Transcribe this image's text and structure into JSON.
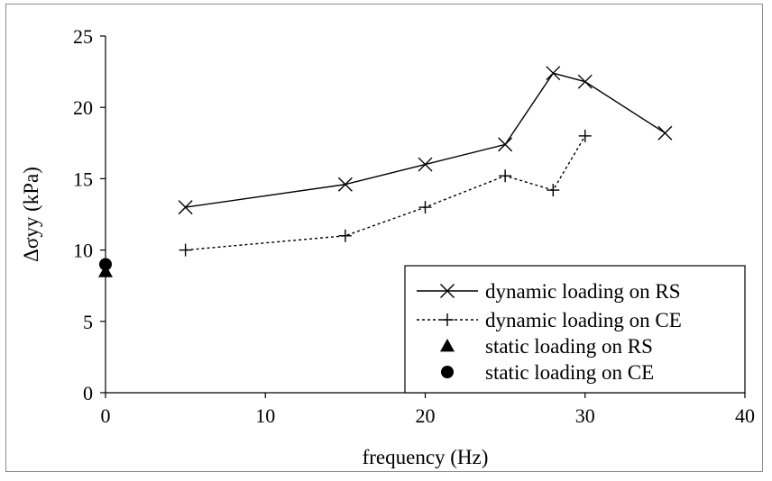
{
  "chart_data": {
    "type": "line",
    "title": "",
    "xlabel": "frequency (Hz)",
    "ylabel": "Δσyy (kPa)",
    "xlim": [
      0,
      40
    ],
    "ylim": [
      0,
      25
    ],
    "xticks": [
      0,
      10,
      20,
      30,
      40
    ],
    "yticks": [
      0,
      5,
      10,
      15,
      20,
      25
    ],
    "grid": false,
    "legend_position": "bottom-right",
    "series": [
      {
        "name": "dynamic loading on RS",
        "style": "solid",
        "marker": "x",
        "color": "#000000",
        "points": [
          [
            5,
            13.0
          ],
          [
            15,
            14.6
          ],
          [
            20,
            16.0
          ],
          [
            25,
            17.4
          ],
          [
            28,
            22.4
          ],
          [
            30,
            21.8
          ],
          [
            35,
            18.2
          ]
        ]
      },
      {
        "name": "dynamic loading on CE",
        "style": "dotted",
        "marker": "plus",
        "color": "#000000",
        "points": [
          [
            5,
            10.0
          ],
          [
            15,
            11.0
          ],
          [
            20,
            13.0
          ],
          [
            25,
            15.2
          ],
          [
            28,
            14.2
          ],
          [
            30,
            18.0
          ]
        ]
      },
      {
        "name": "static loading on RS",
        "style": "none",
        "marker": "triangle",
        "color": "#000000",
        "points": [
          [
            0,
            8.5
          ]
        ]
      },
      {
        "name": "static loading on CE",
        "style": "none",
        "marker": "circle",
        "color": "#000000",
        "points": [
          [
            0,
            9.0
          ]
        ]
      }
    ]
  }
}
